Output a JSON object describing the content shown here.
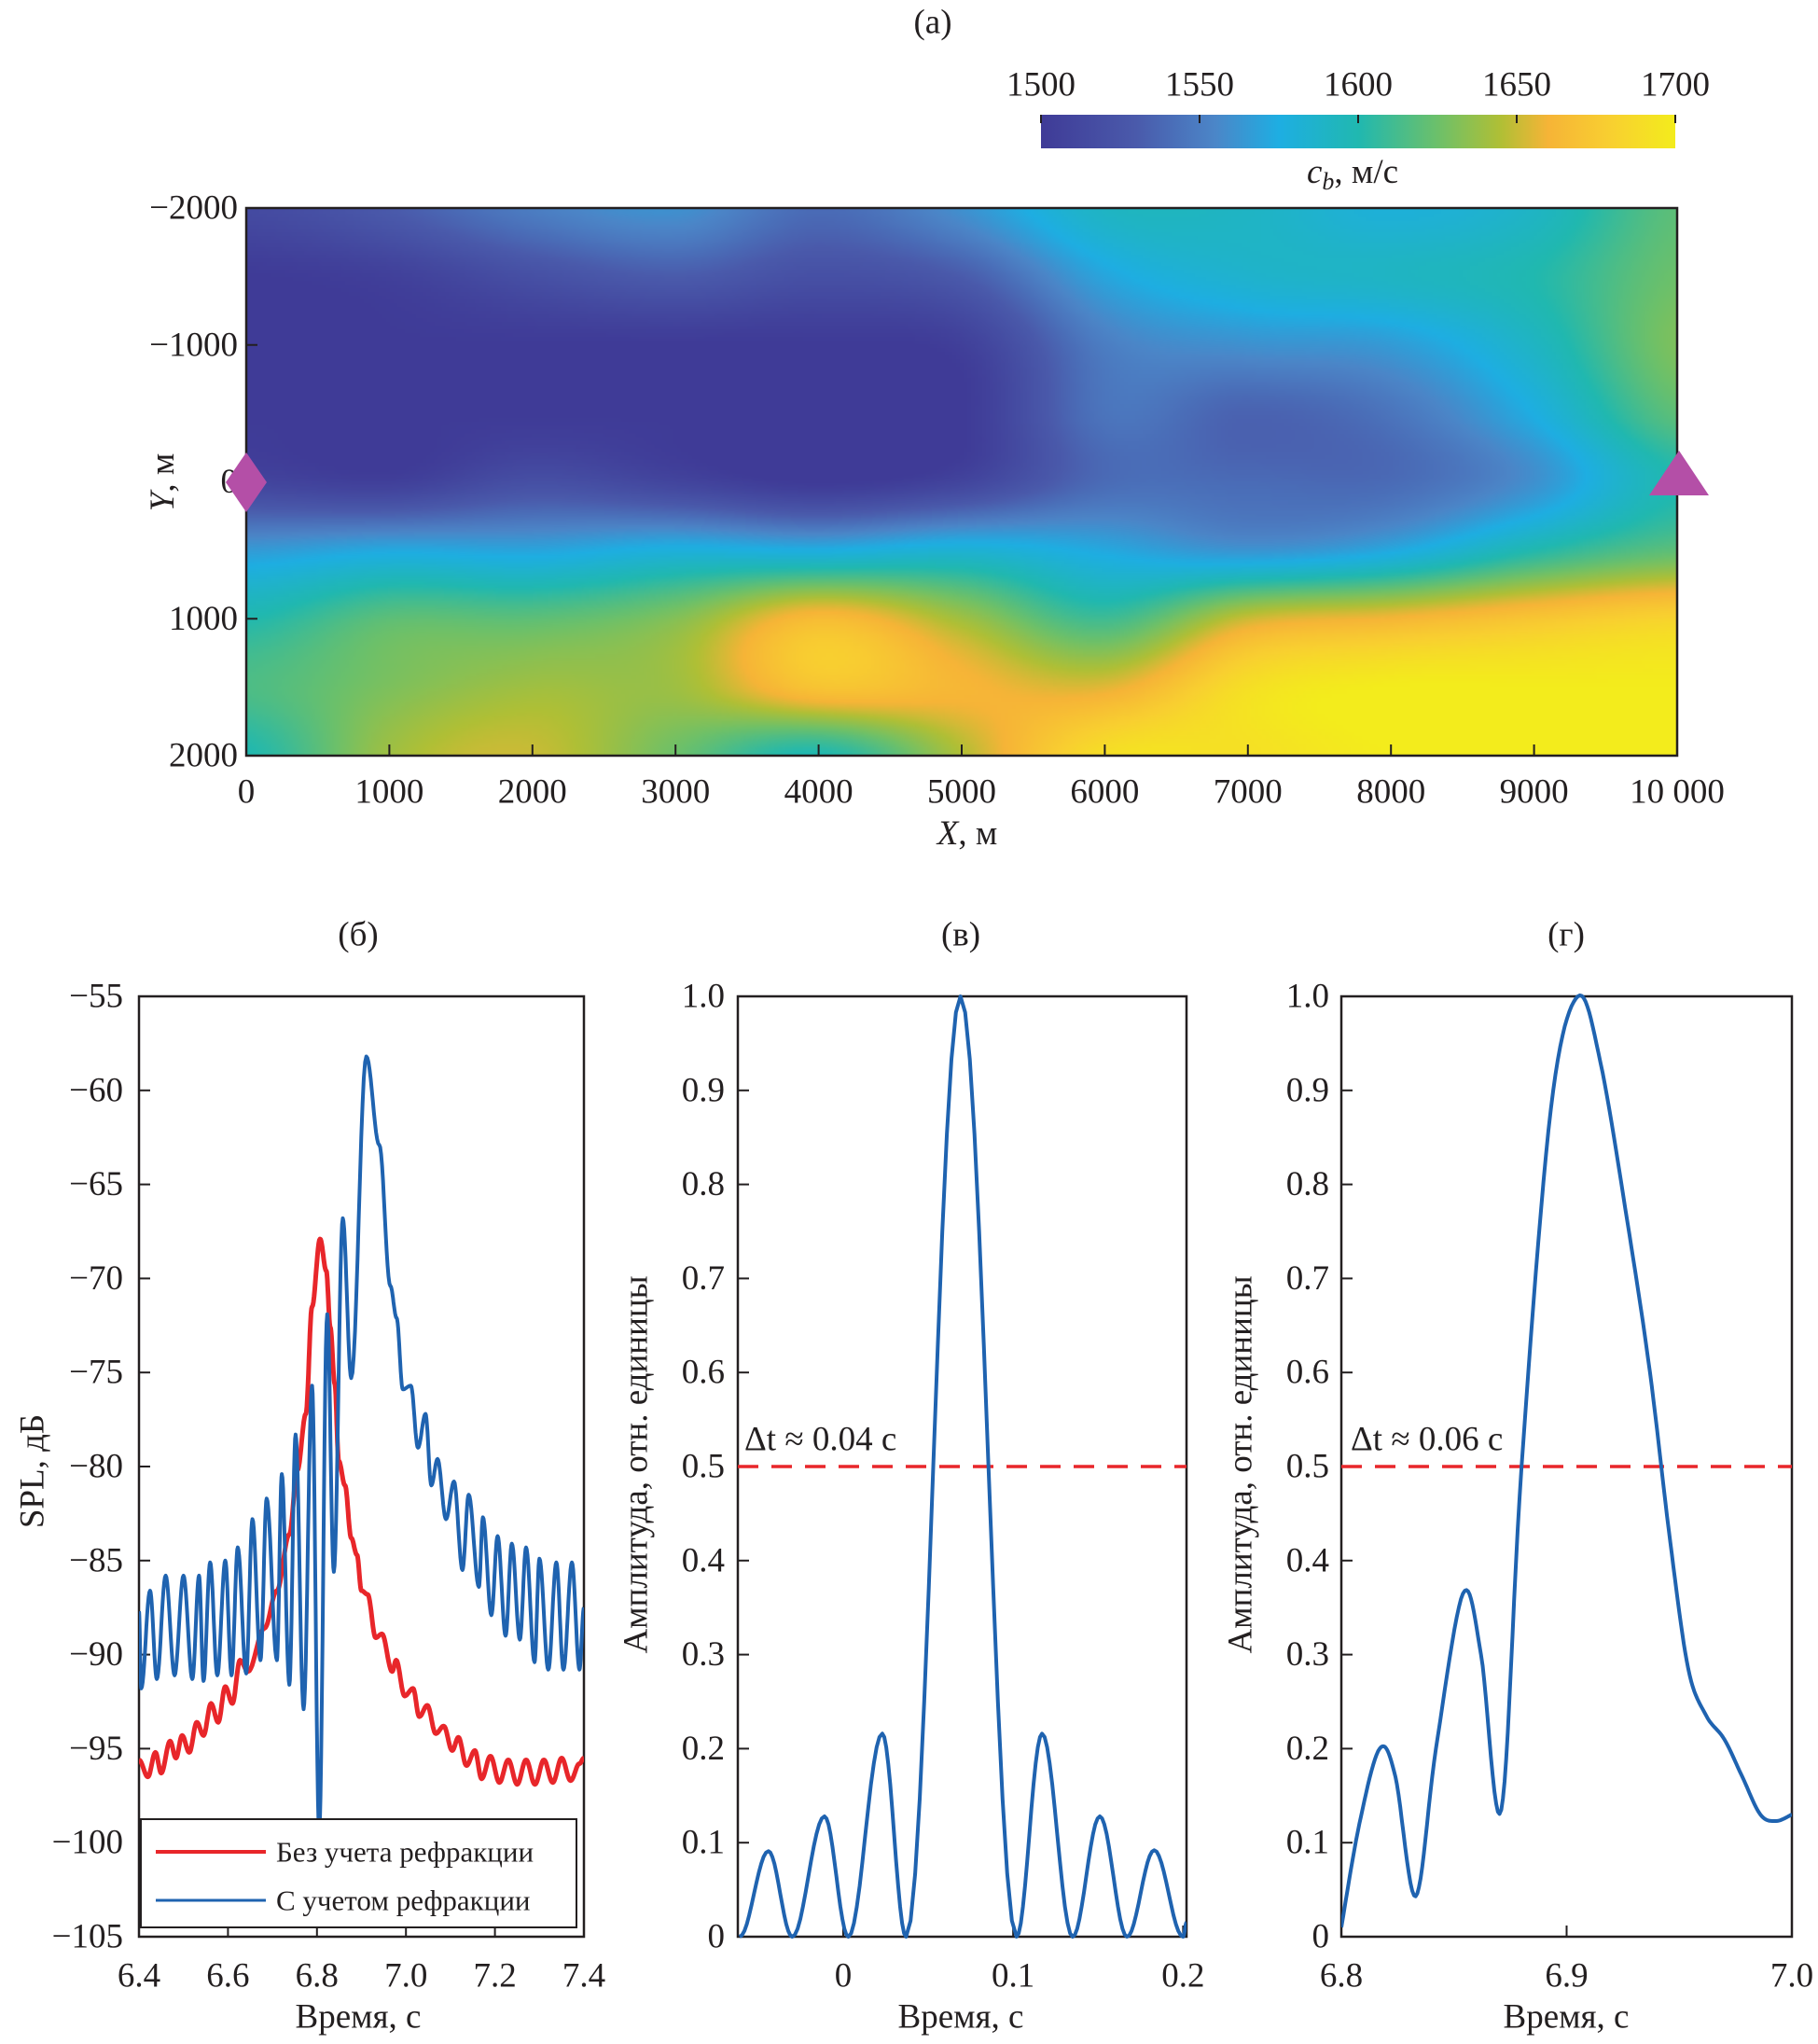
{
  "panels": {
    "a": "(а)",
    "b": "(б)",
    "v": "(в)",
    "g": "(г)"
  },
  "colors": {
    "red": "#e8262a",
    "blue": "#1f63b0",
    "marker": "#b44fa7",
    "axis": "#231f20"
  },
  "colormap": [
    [
      1500,
      "#3f3b97"
    ],
    [
      1530,
      "#4a5aab"
    ],
    [
      1555,
      "#4b86c8"
    ],
    [
      1575,
      "#1eaee2"
    ],
    [
      1600,
      "#20b8b0"
    ],
    [
      1625,
      "#6cc06a"
    ],
    [
      1645,
      "#b0bf35"
    ],
    [
      1660,
      "#f6b437"
    ],
    [
      1680,
      "#f8d030"
    ],
    [
      1700,
      "#f3ec1c"
    ]
  ],
  "chart_data": [
    {
      "type": "heatmap",
      "panel": "(а)",
      "xlabel": {
        "symbol": "X",
        "unit": ", м"
      },
      "ylabel": {
        "symbol": "Y",
        "unit": ", м"
      },
      "colorbar": {
        "label": {
          "symbol": "c",
          "subscript": "b",
          "unit": ", м/с"
        },
        "range": [
          1500,
          1700
        ],
        "ticks": [
          1500,
          1550,
          1600,
          1650,
          1700
        ],
        "tick_labels": [
          "1500",
          "1550",
          "1600",
          "1650",
          "1700"
        ]
      },
      "xlim": [
        0,
        10000
      ],
      "ylim": [
        -2000,
        2000
      ],
      "y_inverted": true,
      "xticks": [
        0,
        1000,
        2000,
        3000,
        4000,
        5000,
        6000,
        7000,
        8000,
        9000,
        10000
      ],
      "xtick_labels": [
        "0",
        "1000",
        "2000",
        "3000",
        "4000",
        "5000",
        "6000",
        "7000",
        "8000",
        "9000",
        "10 000"
      ],
      "yticks": [
        -2000,
        -1000,
        0,
        1000,
        2000
      ],
      "ytick_labels": [
        "−2000",
        "−1000",
        "0",
        "1000",
        "2000"
      ],
      "x": [
        0,
        1000,
        2000,
        3000,
        4000,
        5000,
        6000,
        7000,
        8000,
        9000,
        10000
      ],
      "y": [
        -2000,
        -1500,
        -1000,
        -500,
        0,
        500,
        1000,
        1500,
        2000
      ],
      "z": [
        [
          1515,
          1530,
          1550,
          1560,
          1540,
          1560,
          1590,
          1590,
          1580,
          1590,
          1620
        ],
        [
          1500,
          1505,
          1520,
          1530,
          1520,
          1530,
          1570,
          1585,
          1590,
          1600,
          1625
        ],
        [
          1500,
          1500,
          1500,
          1500,
          1500,
          1505,
          1550,
          1560,
          1565,
          1590,
          1630
        ],
        [
          1500,
          1500,
          1500,
          1500,
          1500,
          1500,
          1545,
          1535,
          1545,
          1575,
          1620
        ],
        [
          1510,
          1505,
          1520,
          1510,
          1500,
          1510,
          1540,
          1540,
          1540,
          1560,
          1600
        ],
        [
          1565,
          1572,
          1570,
          1578,
          1575,
          1582,
          1572,
          1562,
          1572,
          1600,
          1620
        ],
        [
          1600,
          1620,
          1620,
          1632,
          1665,
          1640,
          1610,
          1650,
          1660,
          1672,
          1682
        ],
        [
          1615,
          1630,
          1640,
          1640,
          1672,
          1662,
          1655,
          1690,
          1700,
          1700,
          1700
        ],
        [
          1600,
          1640,
          1650,
          1625,
          1600,
          1645,
          1690,
          1692,
          1700,
          1700,
          1700
        ]
      ],
      "markers": [
        {
          "shape": "diamond",
          "x": 0,
          "y": 0
        },
        {
          "shape": "triangle",
          "x": 10000,
          "y": 0
        }
      ]
    },
    {
      "type": "line",
      "panel": "(б)",
      "xlabel": "Время, с",
      "ylabel": "SPL, дБ",
      "xlim": [
        6.4,
        7.4
      ],
      "ylim": [
        -105,
        -55
      ],
      "xticks": [
        6.4,
        6.6,
        6.8,
        7.0,
        7.2,
        7.4
      ],
      "xtick_labels": [
        "6.4",
        "6.6",
        "6.8",
        "7.0",
        "7.2",
        "7.4"
      ],
      "yticks": [
        -55,
        -60,
        -65,
        -70,
        -75,
        -80,
        -85,
        -90,
        -95,
        -100,
        -105
      ],
      "ytick_labels": [
        "−55",
        "−60",
        "−65",
        "−70",
        "−75",
        "−80",
        "−85",
        "−90",
        "−95",
        "−100",
        "−105"
      ],
      "legend_position": "bottom",
      "series": [
        {
          "name": "Без учета рефракции",
          "color": "red",
          "points": [
            [
              6.4,
              -95.6
            ],
            [
              6.42,
              -96.5
            ],
            [
              6.437,
              -95.2
            ],
            [
              6.45,
              -96.3
            ],
            [
              6.47,
              -94.6
            ],
            [
              6.483,
              -95.5
            ],
            [
              6.497,
              -94.3
            ],
            [
              6.513,
              -95.2
            ],
            [
              6.53,
              -93.6
            ],
            [
              6.545,
              -94.3
            ],
            [
              6.562,
              -92.6
            ],
            [
              6.578,
              -93.6
            ],
            [
              6.594,
              -91.7
            ],
            [
              6.61,
              -92.6
            ],
            [
              6.627,
              -90.3
            ],
            [
              6.645,
              -90.9
            ],
            [
              6.682,
              -88.6
            ],
            [
              6.71,
              -86.6
            ],
            [
              6.738,
              -83.6
            ],
            [
              6.756,
              -80.2
            ],
            [
              6.775,
              -77.2
            ],
            [
              6.789,
              -71.5
            ],
            [
              6.807,
              -67.9
            ],
            [
              6.821,
              -69.6
            ],
            [
              6.83,
              -72.6
            ],
            [
              6.84,
              -75.6
            ],
            [
              6.849,
              -79.7
            ],
            [
              6.863,
              -81
            ],
            [
              6.877,
              -83.8
            ],
            [
              6.89,
              -84.7
            ],
            [
              6.9,
              -86.6
            ],
            [
              6.914,
              -86.8
            ],
            [
              6.932,
              -89.1
            ],
            [
              6.946,
              -88.9
            ],
            [
              6.969,
              -90.9
            ],
            [
              6.978,
              -90.3
            ],
            [
              6.997,
              -92.2
            ],
            [
              7.016,
              -91.8
            ],
            [
              7.03,
              -93.3
            ],
            [
              7.048,
              -92.7
            ],
            [
              7.067,
              -94.2
            ],
            [
              7.085,
              -93.8
            ],
            [
              7.104,
              -95.1
            ],
            [
              7.118,
              -94.4
            ],
            [
              7.136,
              -95.9
            ],
            [
              7.155,
              -95.1
            ],
            [
              7.17,
              -96.6
            ],
            [
              7.19,
              -95.4
            ],
            [
              7.21,
              -96.8
            ],
            [
              7.23,
              -95.6
            ],
            [
              7.25,
              -96.9
            ],
            [
              7.27,
              -95.6
            ],
            [
              7.29,
              -96.9
            ],
            [
              7.31,
              -95.6
            ],
            [
              7.33,
              -96.8
            ],
            [
              7.35,
              -95.5
            ],
            [
              7.37,
              -96.7
            ],
            [
              7.39,
              -95.8
            ],
            [
              7.4,
              -95.5
            ]
          ]
        },
        {
          "name": "С учетом рефракции",
          "color": "blue",
          "points": [
            [
              6.4,
              -87.7
            ],
            [
              6.405,
              -91.8
            ],
            [
              6.425,
              -86.6
            ],
            [
              6.44,
              -91.3
            ],
            [
              6.46,
              -85.8
            ],
            [
              6.48,
              -91.1
            ],
            [
              6.5,
              -85.8
            ],
            [
              6.52,
              -91.3
            ],
            [
              6.535,
              -85.8
            ],
            [
              6.545,
              -91.4
            ],
            [
              6.56,
              -85.1
            ],
            [
              6.576,
              -91.1
            ],
            [
              6.594,
              -85.0
            ],
            [
              6.608,
              -91.1
            ],
            [
              6.622,
              -84.3
            ],
            [
              6.641,
              -91.0
            ],
            [
              6.655,
              -82.8
            ],
            [
              6.673,
              -90.3
            ],
            [
              6.687,
              -81.7
            ],
            [
              6.71,
              -90.3
            ],
            [
              6.721,
              -80.4
            ],
            [
              6.738,
              -91.6
            ],
            [
              6.752,
              -78.3
            ],
            [
              6.77,
              -92.9
            ],
            [
              6.789,
              -75.7
            ],
            [
              6.805,
              -99.4
            ],
            [
              6.823,
              -71.9
            ],
            [
              6.838,
              -85.6
            ],
            [
              6.858,
              -66.8
            ],
            [
              6.877,
              -75.3
            ],
            [
              6.911,
              -58.2
            ],
            [
              6.94,
              -62.9
            ],
            [
              6.965,
              -70.4
            ],
            [
              6.979,
              -72.1
            ],
            [
              6.993,
              -75.9
            ],
            [
              7.011,
              -75.7
            ],
            [
              7.027,
              -79
            ],
            [
              7.044,
              -77.2
            ],
            [
              7.057,
              -81
            ],
            [
              7.071,
              -79.6
            ],
            [
              7.09,
              -82.8
            ],
            [
              7.108,
              -80.8
            ],
            [
              7.127,
              -85.5
            ],
            [
              7.141,
              -81.5
            ],
            [
              7.164,
              -86.4
            ],
            [
              7.173,
              -82.7
            ],
            [
              7.192,
              -87.9
            ],
            [
              7.206,
              -83.7
            ],
            [
              7.224,
              -89
            ],
            [
              7.238,
              -84.1
            ],
            [
              7.256,
              -89.2
            ],
            [
              7.27,
              -84.3
            ],
            [
              7.289,
              -90.4
            ],
            [
              7.3,
              -84.9
            ],
            [
              7.32,
              -90.8
            ],
            [
              7.338,
              -85.1
            ],
            [
              7.354,
              -90.8
            ],
            [
              7.373,
              -85.1
            ],
            [
              7.39,
              -90.8
            ],
            [
              7.4,
              -87.5
            ]
          ]
        }
      ]
    },
    {
      "type": "line",
      "panel": "(в)",
      "xlabel": "Время, с",
      "ylabel": "Амплитуда, отн. единицы",
      "xlim": [
        -0.062,
        0.202
      ],
      "ylim": [
        0,
        1
      ],
      "xticks": [
        0,
        0.1,
        0.2
      ],
      "xtick_labels": [
        "0",
        "0.1",
        "0.2"
      ],
      "yticks": [
        0,
        0.1,
        0.2,
        0.3,
        0.4,
        0.5,
        0.6,
        0.7,
        0.8,
        0.9,
        1.0
      ],
      "ytick_labels": [
        "0",
        "0.1",
        "0.2",
        "0.3",
        "0.4",
        "0.5",
        "0.6",
        "0.7",
        "0.8",
        "0.9",
        "1.0"
      ],
      "threshold": 0.5,
      "annotation": "Δt ≈ 0.04 с",
      "series": [
        {
          "color": "blue",
          "points": [
            [
              -0.061,
              0.0
            ],
            [
              -0.044,
              0.091
            ],
            [
              -0.03,
              0.0
            ],
            [
              -0.011,
              0.128
            ],
            [
              0.003,
              0.0
            ],
            [
              0.023,
              0.216
            ],
            [
              0.037,
              0.0
            ],
            [
              0.069,
              1.0
            ],
            [
              0.102,
              0.0
            ],
            [
              0.117,
              0.216
            ],
            [
              0.135,
              0.0
            ],
            [
              0.151,
              0.128
            ],
            [
              0.167,
              0.0
            ],
            [
              0.183,
              0.092
            ],
            [
              0.2,
              0.0
            ],
            [
              0.202,
              0.015
            ]
          ]
        }
      ]
    },
    {
      "type": "line",
      "panel": "(г)",
      "xlabel": "Время, с",
      "ylabel": "Амплитуда, отн. единицы",
      "xlim": [
        6.8,
        7.0
      ],
      "ylim": [
        0,
        1
      ],
      "xticks": [
        6.8,
        6.9,
        7.0
      ],
      "xtick_labels": [
        "6.8",
        "6.9",
        "7.0"
      ],
      "yticks": [
        0,
        0.1,
        0.2,
        0.3,
        0.4,
        0.5,
        0.6,
        0.7,
        0.8,
        0.9,
        1.0
      ],
      "ytick_labels": [
        "0",
        "0.1",
        "0.2",
        "0.3",
        "0.4",
        "0.5",
        "0.6",
        "0.7",
        "0.8",
        "0.9",
        "1.0"
      ],
      "threshold": 0.5,
      "annotation": "Δt ≈ 0.06 с",
      "series": [
        {
          "color": "blue",
          "points": [
            [
              6.8,
              0.01
            ],
            [
              6.808,
              0.12
            ],
            [
              6.817,
              0.2
            ],
            [
              6.824,
              0.17
            ],
            [
              6.833,
              0.043
            ],
            [
              6.842,
              0.2
            ],
            [
              6.854,
              0.365
            ],
            [
              6.862,
              0.3
            ],
            [
              6.871,
              0.135
            ],
            [
              6.88,
              0.5
            ],
            [
              6.893,
              0.88
            ],
            [
              6.905,
              1.0
            ],
            [
              6.915,
              0.93
            ],
            [
              6.927,
              0.76
            ],
            [
              6.937,
              0.6
            ],
            [
              6.946,
              0.42
            ],
            [
              6.954,
              0.285
            ],
            [
              6.962,
              0.235
            ],
            [
              6.97,
              0.21
            ],
            [
              6.978,
              0.17
            ],
            [
              6.986,
              0.13
            ],
            [
              6.993,
              0.123
            ],
            [
              7.0,
              0.13
            ]
          ]
        }
      ]
    }
  ]
}
